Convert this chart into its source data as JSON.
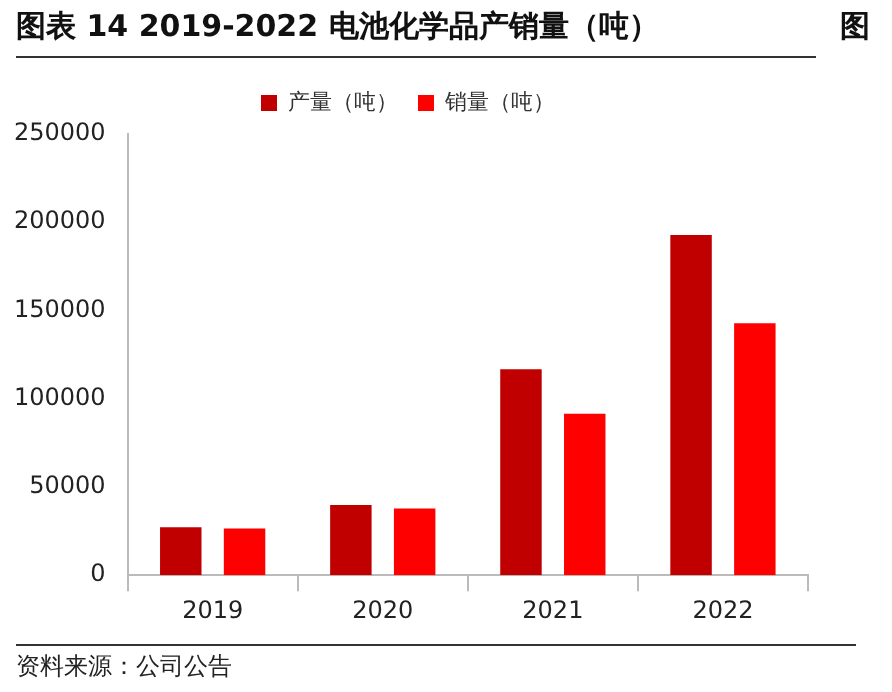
{
  "chart_data": {
    "type": "bar",
    "title": "图表 14 2019-2022 电池化学品产销量（吨）",
    "categories": [
      "2019",
      "2020",
      "2021",
      "2022"
    ],
    "series": [
      {
        "name": "产量（吨）",
        "color": "#c00000",
        "values": [
          27200,
          39800,
          116700,
          192700
        ]
      },
      {
        "name": "销量（吨）",
        "color": "#ff0000",
        "values": [
          26500,
          37800,
          91500,
          142700
        ]
      }
    ],
    "ylim": [
      0,
      250000
    ],
    "yticks": [
      0,
      50000,
      100000,
      150000,
      200000,
      250000
    ],
    "legend": "top",
    "annotations": [
      "资料来源：公司公告",
      "图"
    ]
  }
}
